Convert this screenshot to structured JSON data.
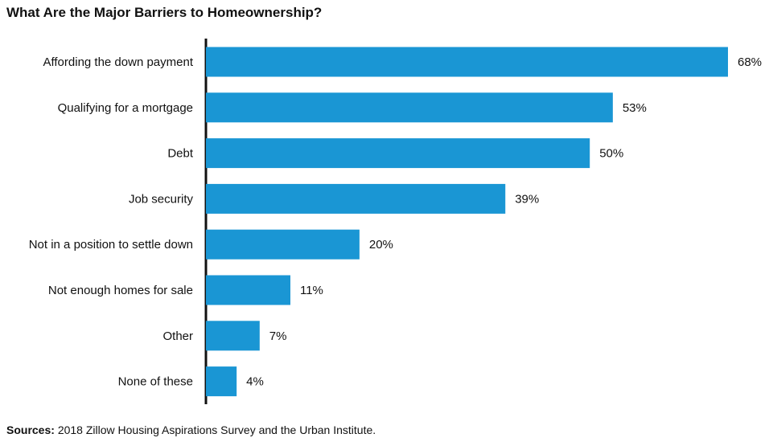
{
  "chart_data": {
    "type": "bar",
    "orientation": "horizontal",
    "title": "What Are the Major Barriers to Homeownership?",
    "categories": [
      "Affording the down payment",
      "Qualifying for a mortgage",
      "Debt",
      "Job security",
      "Not in a position to settle down",
      "Not enough homes for sale",
      "Other",
      "None of these"
    ],
    "values": [
      68,
      53,
      50,
      39,
      20,
      11,
      7,
      4
    ],
    "value_labels": [
      "68%",
      "53%",
      "50%",
      "39%",
      "20%",
      "11%",
      "7%",
      "4%"
    ],
    "unit": "%",
    "xlim": [
      0,
      68
    ],
    "grid": false,
    "bar_color": "#1a96d4"
  },
  "source": {
    "label": "Sources:",
    "text": "2018 Zillow Housing Aspirations Survey and the Urban Institute."
  }
}
